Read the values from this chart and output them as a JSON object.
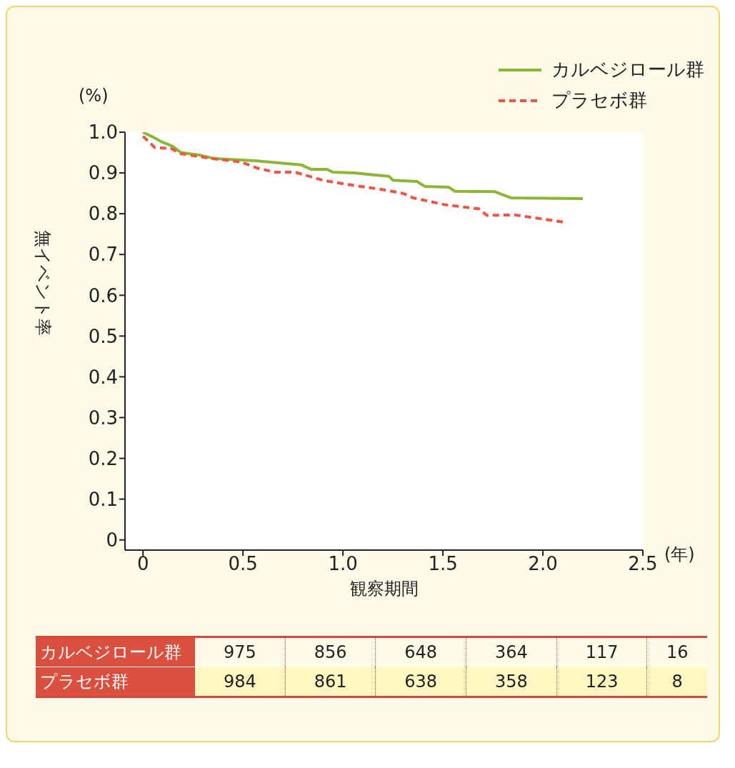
{
  "chart_data": {
    "type": "line",
    "xlabel": "観察期間",
    "ylabel": "無イベント率",
    "xlim": [
      -0.09,
      2.5
    ],
    "ylim": [
      -0.025,
      1.0
    ],
    "xticks": [
      0,
      0.5,
      {
        "value": 1,
        "label": "1.0"
      },
      1.5,
      {
        "value": 2,
        "label": "2.0"
      },
      2.5
    ],
    "yticks": [
      0,
      0.1,
      0.2,
      0.3,
      0.4,
      0.5,
      0.6,
      0.7,
      0.8,
      0.9,
      {
        "value": 1,
        "label": "1.0"
      }
    ],
    "grid": false,
    "legend": "top right",
    "marker": "none",
    "series": [
      {
        "name": "カルベジロール群",
        "color": "#8ab833",
        "line_style": "solid",
        "x": [
          0,
          0.05,
          0.09,
          0.15,
          0.19,
          0.28,
          0.36,
          0.56,
          0.79,
          0.84,
          0.92,
          0.95,
          1.06,
          1.16,
          1.23,
          1.25,
          1.37,
          1.41,
          1.53,
          1.56,
          1.76,
          1.84,
          2.2
        ],
        "values": [
          1.0,
          0.988,
          0.977,
          0.965,
          0.95,
          0.944,
          0.935,
          0.93,
          0.92,
          0.909,
          0.909,
          0.902,
          0.9,
          0.895,
          0.892,
          0.882,
          0.879,
          0.867,
          0.865,
          0.855,
          0.854,
          0.839,
          0.837
        ]
      },
      {
        "name": "プラセボ群",
        "color": "#ee5544",
        "line_style": "dashed",
        "x": [
          0,
          0.06,
          0.14,
          0.19,
          0.35,
          0.49,
          0.57,
          0.66,
          0.76,
          0.9,
          1.02,
          1.2,
          1.3,
          1.35,
          1.51,
          1.68,
          1.72,
          1.86,
          2.11
        ],
        "values": [
          0.99,
          0.962,
          0.96,
          0.947,
          0.935,
          0.927,
          0.912,
          0.902,
          0.902,
          0.882,
          0.872,
          0.859,
          0.85,
          0.839,
          0.822,
          0.812,
          0.796,
          0.797,
          0.779
        ]
      }
    ],
    "annotations": [
      "(%)",
      "(年)",
      "975",
      "856",
      "648",
      "364",
      "117",
      "16",
      "984",
      "861",
      "638",
      "358",
      "123",
      "8"
    ]
  }
}
